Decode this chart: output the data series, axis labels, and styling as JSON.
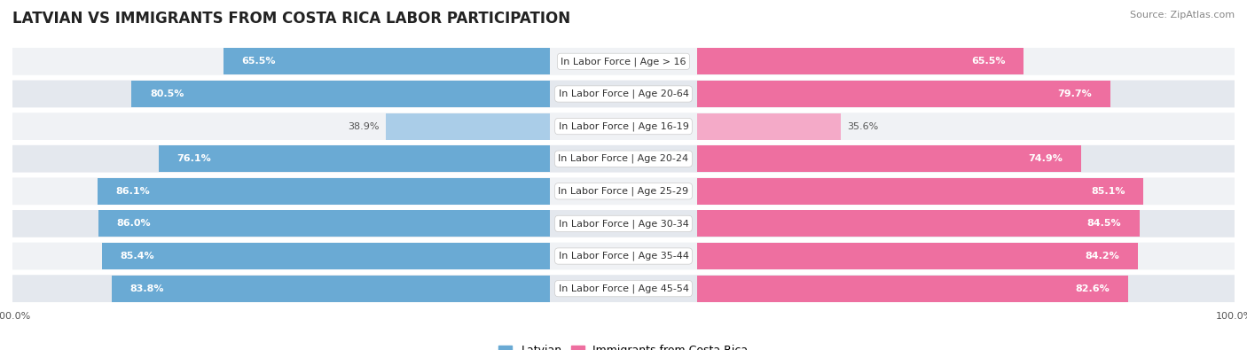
{
  "title": "LATVIAN VS IMMIGRANTS FROM COSTA RICA LABOR PARTICIPATION",
  "source": "Source: ZipAtlas.com",
  "categories": [
    "In Labor Force | Age > 16",
    "In Labor Force | Age 20-64",
    "In Labor Force | Age 16-19",
    "In Labor Force | Age 20-24",
    "In Labor Force | Age 25-29",
    "In Labor Force | Age 30-34",
    "In Labor Force | Age 35-44",
    "In Labor Force | Age 45-54"
  ],
  "latvian_values": [
    65.5,
    80.5,
    38.9,
    76.1,
    86.1,
    86.0,
    85.4,
    83.8
  ],
  "immigrant_values": [
    65.5,
    79.7,
    35.6,
    74.9,
    85.1,
    84.5,
    84.2,
    82.6
  ],
  "latvian_color_dark": "#6aaad4",
  "latvian_color_light": "#aacde8",
  "immigrant_color_dark": "#ee6fa0",
  "immigrant_color_light": "#f4aac8",
  "row_bg_color_odd": "#f0f2f5",
  "row_bg_color_even": "#e4e8ee",
  "center_box_color": "#ffffff",
  "max_value": 100.0,
  "legend_latvian": "Latvian",
  "legend_immigrant": "Immigrants from Costa Rica",
  "title_fontsize": 12,
  "label_fontsize": 8,
  "value_fontsize": 8,
  "legend_fontsize": 9,
  "source_fontsize": 8
}
